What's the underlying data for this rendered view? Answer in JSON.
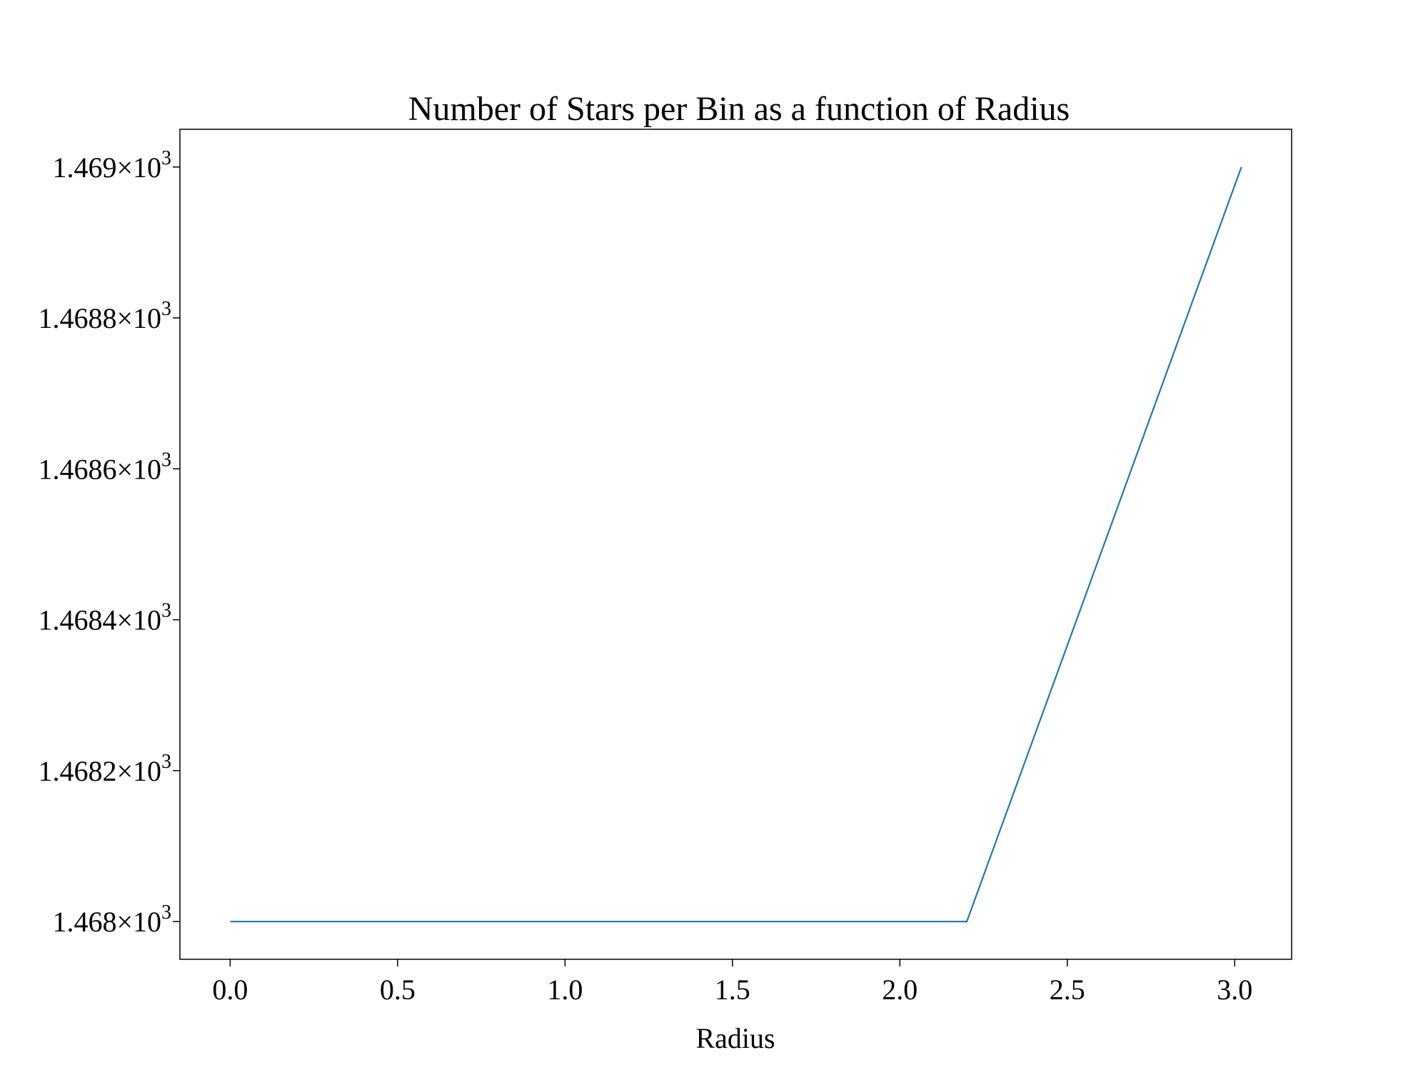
{
  "chart_data": {
    "type": "line",
    "title": "Number of Stars per Bin as a function of Radius",
    "xlabel": "Radius",
    "ylabel": "",
    "xlim": [
      -0.15,
      3.17
    ],
    "ylim": [
      1467.95,
      1469.05
    ],
    "x_ticks": [
      {
        "value": 0.0,
        "label": "0.0"
      },
      {
        "value": 0.5,
        "label": "0.5"
      },
      {
        "value": 1.0,
        "label": "1.0"
      },
      {
        "value": 1.5,
        "label": "1.5"
      },
      {
        "value": 2.0,
        "label": "2.0"
      },
      {
        "value": 2.5,
        "label": "2.5"
      },
      {
        "value": 3.0,
        "label": "3.0"
      }
    ],
    "y_ticks": [
      {
        "value": 1468.0,
        "mantissa": "1.468",
        "times": "×",
        "base": "10",
        "exp": "3"
      },
      {
        "value": 1468.2,
        "mantissa": "1.4682",
        "times": "×",
        "base": "10",
        "exp": "3"
      },
      {
        "value": 1468.4,
        "mantissa": "1.4684",
        "times": "×",
        "base": "10",
        "exp": "3"
      },
      {
        "value": 1468.6,
        "mantissa": "1.4686",
        "times": "×",
        "base": "10",
        "exp": "3"
      },
      {
        "value": 1468.8,
        "mantissa": "1.4688",
        "times": "×",
        "base": "10",
        "exp": "3"
      },
      {
        "value": 1469.0,
        "mantissa": "1.469",
        "times": "×",
        "base": "10",
        "exp": "3"
      }
    ],
    "series": [
      {
        "color": "#1f77b4",
        "x": [
          0.0,
          2.2,
          3.02
        ],
        "y": [
          1468,
          1468,
          1469
        ]
      }
    ],
    "grid": false,
    "legend": "none"
  }
}
